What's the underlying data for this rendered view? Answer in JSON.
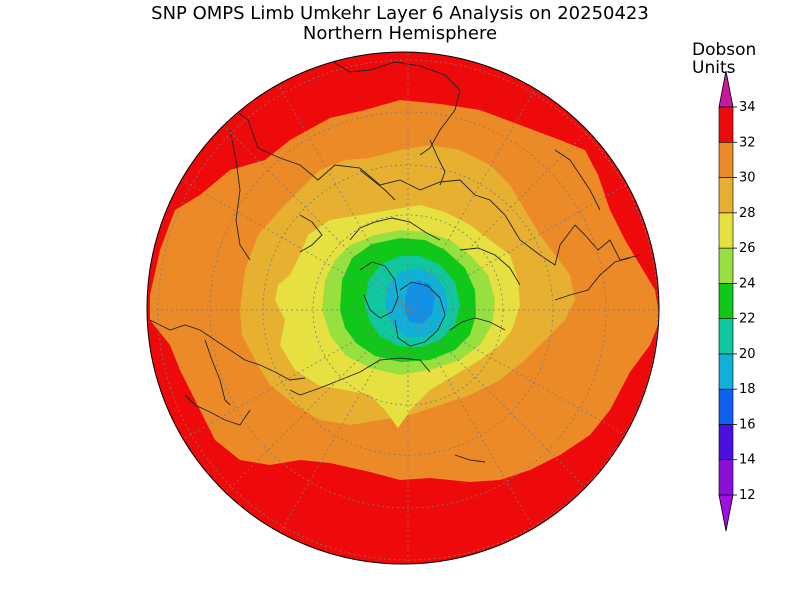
{
  "title": {
    "line1": "SNP OMPS Limb Umkehr Layer 6 Analysis on 20250423",
    "line2": "Northern Hemisphere"
  },
  "colorbar": {
    "units_line1": "Dobson",
    "units_line2": "Units",
    "levels": [
      {
        "from": 12,
        "to": 14,
        "color": "#8a10d8"
      },
      {
        "from": 14,
        "to": 16,
        "color": "#4a10e0"
      },
      {
        "from": 16,
        "to": 18,
        "color": "#1060f0"
      },
      {
        "from": 18,
        "to": 20,
        "color": "#10b0d8"
      },
      {
        "from": 20,
        "to": 22,
        "color": "#10c8a0"
      },
      {
        "from": 22,
        "to": 24,
        "color": "#10c818"
      },
      {
        "from": 24,
        "to": 26,
        "color": "#98e040"
      },
      {
        "from": 26,
        "to": 28,
        "color": "#e6e040"
      },
      {
        "from": 28,
        "to": 30,
        "color": "#e8b030"
      },
      {
        "from": 30,
        "to": 32,
        "color": "#ec8a28"
      },
      {
        "from": 32,
        "to": 34,
        "color": "#ee0a0a"
      }
    ],
    "tick_labels": [
      "12",
      "14",
      "16",
      "18",
      "20",
      "22",
      "24",
      "26",
      "28",
      "30",
      "32",
      "34"
    ],
    "under_color": "#a010e0",
    "over_color": "#c818a0"
  },
  "map": {
    "projection": "north polar stereographic",
    "hemisphere": "Northern",
    "graticule": "dotted",
    "background_color": "#ee0a0a"
  }
}
